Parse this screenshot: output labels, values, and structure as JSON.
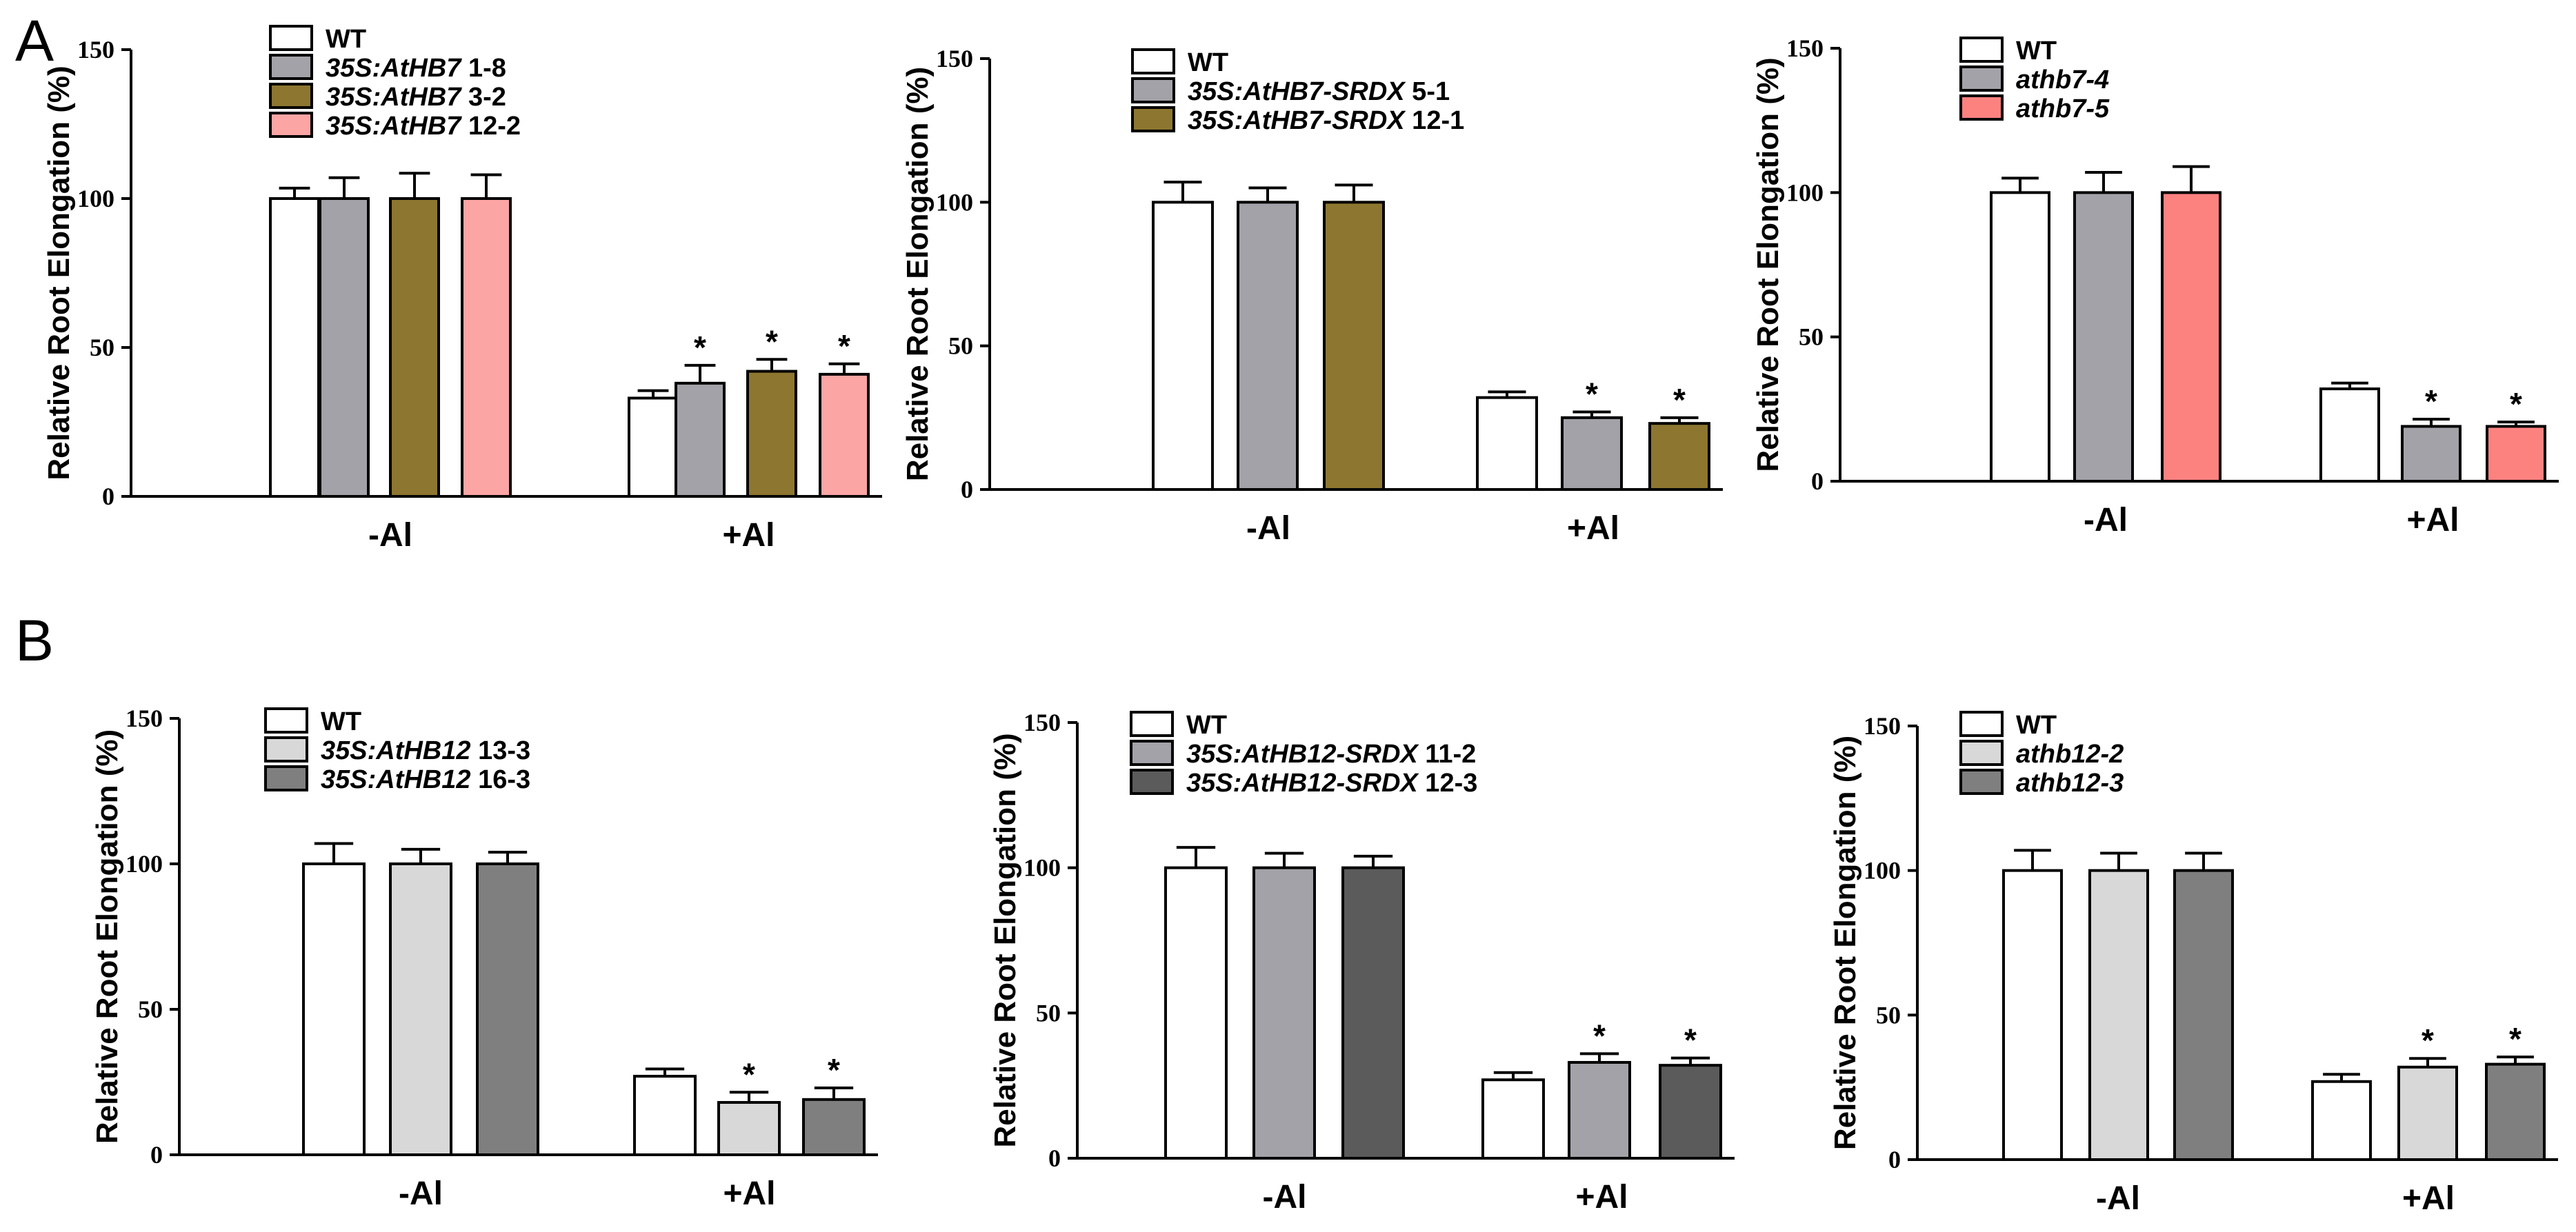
{
  "figure": {
    "panel_letters": [
      "A",
      "B"
    ]
  },
  "chart_data": [
    {
      "type": "bar",
      "panel": "A",
      "title": "",
      "ylabel": "Relative Root Elongation (%)",
      "xlabel": "",
      "ylim": [
        0,
        150
      ],
      "yticks": [
        "0",
        "50",
        "100",
        "150"
      ],
      "categories": [
        "-Al",
        "+Al"
      ],
      "series": [
        {
          "name": "WT",
          "legend": [
            {
              "text": "WT",
              "italic": false
            }
          ],
          "color": "#ffffff",
          "values": [
            100,
            33
          ],
          "errors": [
            3.5,
            2.5
          ],
          "sig": [
            false,
            false
          ]
        },
        {
          "name": "35S:AtHB7 1-8",
          "legend": [
            {
              "text": "35S:AtHB7",
              "italic": true
            },
            {
              "text": " 1-8",
              "italic": false
            }
          ],
          "color": "#a3a2a8",
          "values": [
            100,
            38
          ],
          "errors": [
            7,
            6
          ],
          "sig": [
            false,
            true
          ]
        },
        {
          "name": "35S:AtHB7 3-2",
          "legend": [
            {
              "text": "35S:AtHB7",
              "italic": true
            },
            {
              "text": " 3-2",
              "italic": false
            }
          ],
          "color": "#8d7630",
          "values": [
            100,
            42
          ],
          "errors": [
            8.5,
            4
          ],
          "sig": [
            false,
            true
          ]
        },
        {
          "name": "35S:AtHB7 12-2",
          "legend": [
            {
              "text": "35S:AtHB7",
              "italic": true
            },
            {
              "text": " 12-2",
              "italic": false
            }
          ],
          "color": "#fba5a4",
          "values": [
            100,
            41
          ],
          "errors": [
            8,
            3.5
          ],
          "sig": [
            false,
            true
          ]
        }
      ],
      "sig_symbol": "*"
    },
    {
      "type": "bar",
      "panel": "A",
      "title": "",
      "ylabel": "Relative Root Elongation (%)",
      "xlabel": "",
      "ylim": [
        0,
        150
      ],
      "yticks": [
        "0",
        "50",
        "100",
        "150"
      ],
      "categories": [
        "-Al",
        "+Al"
      ],
      "series": [
        {
          "name": "WT",
          "legend": [
            {
              "text": "WT",
              "italic": false
            }
          ],
          "color": "#ffffff",
          "values": [
            100,
            32
          ],
          "errors": [
            7,
            2
          ],
          "sig": [
            false,
            false
          ]
        },
        {
          "name": "35S:AtHB7-SRDX 5-1",
          "legend": [
            {
              "text": "35S:AtHB7-SRDX",
              "italic": true
            },
            {
              "text": " 5-1",
              "italic": false
            }
          ],
          "color": "#a3a2a8",
          "values": [
            100,
            25
          ],
          "errors": [
            5,
            2
          ],
          "sig": [
            false,
            true
          ]
        },
        {
          "name": "35S:AtHB7-SRDX 12-1",
          "legend": [
            {
              "text": "35S:AtHB7-SRDX",
              "italic": true
            },
            {
              "text": " 12-1",
              "italic": false
            }
          ],
          "color": "#8d7630",
          "values": [
            100,
            23
          ],
          "errors": [
            6,
            2
          ],
          "sig": [
            false,
            true
          ]
        }
      ],
      "sig_symbol": "*"
    },
    {
      "type": "bar",
      "panel": "A",
      "title": "",
      "ylabel": "Relative Root Elongation (%)",
      "xlabel": "",
      "ylim": [
        0,
        150
      ],
      "yticks": [
        "0",
        "50",
        "100",
        "150"
      ],
      "categories": [
        "-Al",
        "+Al"
      ],
      "series": [
        {
          "name": "WT",
          "legend": [
            {
              "text": "WT",
              "italic": false
            }
          ],
          "color": "#ffffff",
          "values": [
            100,
            32
          ],
          "errors": [
            5,
            2
          ],
          "sig": [
            false,
            false
          ]
        },
        {
          "name": "athb7-4",
          "legend": [
            {
              "text": "athb7-4",
              "italic": true
            }
          ],
          "color": "#a3a2a8",
          "values": [
            100,
            19
          ],
          "errors": [
            7,
            2.5
          ],
          "sig": [
            false,
            true
          ]
        },
        {
          "name": "athb7-5",
          "legend": [
            {
              "text": "athb7-5",
              "italic": true
            }
          ],
          "color": "#fc8280",
          "values": [
            100,
            19
          ],
          "errors": [
            9,
            1.5
          ],
          "sig": [
            false,
            true
          ]
        }
      ],
      "sig_symbol": "*"
    },
    {
      "type": "bar",
      "panel": "B",
      "title": "",
      "ylabel": "Relative Root Elongation (%)",
      "xlabel": "",
      "ylim": [
        0,
        150
      ],
      "yticks": [
        "0",
        "50",
        "100",
        "150"
      ],
      "categories": [
        "-Al",
        "+Al"
      ],
      "series": [
        {
          "name": "WT",
          "legend": [
            {
              "text": "WT",
              "italic": false
            }
          ],
          "color": "#ffffff",
          "values": [
            100,
            27
          ],
          "errors": [
            7,
            2.5
          ],
          "sig": [
            false,
            false
          ]
        },
        {
          "name": "35S:AtHB12 13-3",
          "legend": [
            {
              "text": "35S:AtHB12",
              "italic": true
            },
            {
              "text": " 13-3",
              "italic": false
            }
          ],
          "color": "#d8d8d8",
          "values": [
            100,
            18
          ],
          "errors": [
            5,
            3.5
          ],
          "sig": [
            false,
            true
          ]
        },
        {
          "name": "35S:AtHB12 16-3",
          "legend": [
            {
              "text": "35S:AtHB12",
              "italic": true
            },
            {
              "text": " 16-3",
              "italic": false
            }
          ],
          "color": "#7f7f7f",
          "values": [
            100,
            19
          ],
          "errors": [
            4,
            4
          ],
          "sig": [
            false,
            true
          ]
        }
      ],
      "sig_symbol": "*"
    },
    {
      "type": "bar",
      "panel": "B",
      "title": "",
      "ylabel": "Relative Root Elongation (%)",
      "xlabel": "",
      "ylim": [
        0,
        150
      ],
      "yticks": [
        "0",
        "50",
        "100",
        "150"
      ],
      "categories": [
        "-Al",
        "+Al"
      ],
      "series": [
        {
          "name": "WT",
          "legend": [
            {
              "text": "WT",
              "italic": false
            }
          ],
          "color": "#ffffff",
          "values": [
            100,
            27
          ],
          "errors": [
            7,
            2.5
          ],
          "sig": [
            false,
            false
          ]
        },
        {
          "name": "35S:AtHB12-SRDX 11-2",
          "legend": [
            {
              "text": "35S:AtHB12-SRDX",
              "italic": true
            },
            {
              "text": " 11-2",
              "italic": false
            }
          ],
          "color": "#a3a2a8",
          "values": [
            100,
            33
          ],
          "errors": [
            5,
            3
          ],
          "sig": [
            false,
            true
          ]
        },
        {
          "name": "35S:AtHB12-SRDX 12-3",
          "legend": [
            {
              "text": "35S:AtHB12-SRDX",
              "italic": true
            },
            {
              "text": " 12-3",
              "italic": false
            }
          ],
          "color": "#5b5b5b",
          "values": [
            100,
            32
          ],
          "errors": [
            4,
            2.5
          ],
          "sig": [
            false,
            true
          ]
        }
      ],
      "sig_symbol": "*"
    },
    {
      "type": "bar",
      "panel": "B",
      "title": "",
      "ylabel": "Relative Root Elongation (%)",
      "xlabel": "",
      "ylim": [
        0,
        150
      ],
      "yticks": [
        "0",
        "50",
        "100",
        "150"
      ],
      "categories": [
        "-Al",
        "+Al"
      ],
      "series": [
        {
          "name": "WT",
          "legend": [
            {
              "text": "WT",
              "italic": false
            }
          ],
          "color": "#ffffff",
          "values": [
            100,
            27
          ],
          "errors": [
            7,
            2.5
          ],
          "sig": [
            false,
            false
          ]
        },
        {
          "name": "athb12-2",
          "legend": [
            {
              "text": "athb12-2",
              "italic": true
            }
          ],
          "color": "#d8d8d8",
          "values": [
            100,
            32
          ],
          "errors": [
            6,
            3
          ],
          "sig": [
            false,
            true
          ]
        },
        {
          "name": "athb12-3",
          "legend": [
            {
              "text": "athb12-3",
              "italic": true
            }
          ],
          "color": "#7f7f7f",
          "values": [
            100,
            33
          ],
          "errors": [
            6,
            2.5
          ],
          "sig": [
            false,
            true
          ]
        }
      ],
      "sig_symbol": "*"
    }
  ]
}
